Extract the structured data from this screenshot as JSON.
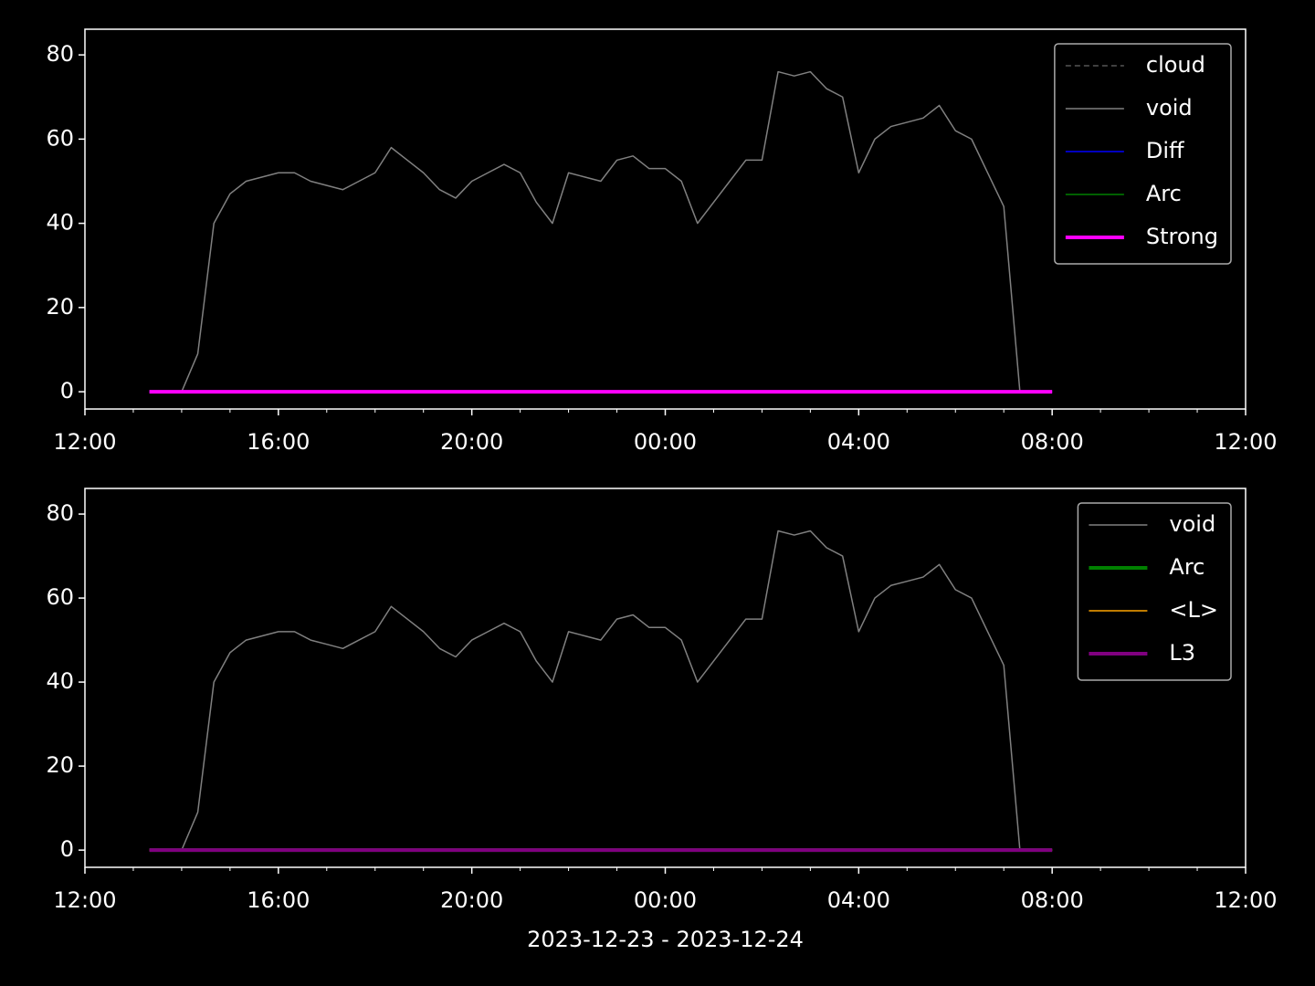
{
  "chart_data": [
    {
      "type": "line",
      "x": [
        "13:20",
        "13:40",
        "14:00",
        "14:20",
        "14:40",
        "15:00",
        "15:20",
        "15:40",
        "16:00",
        "16:20",
        "16:40",
        "17:00",
        "17:20",
        "17:40",
        "18:00",
        "18:20",
        "18:40",
        "19:00",
        "19:20",
        "19:40",
        "20:00",
        "20:20",
        "20:40",
        "21:00",
        "21:20",
        "21:40",
        "22:00",
        "22:20",
        "22:40",
        "23:00",
        "23:20",
        "23:40",
        "00:00",
        "00:20",
        "00:40",
        "01:00",
        "01:20",
        "01:40",
        "02:00",
        "02:20",
        "02:40",
        "03:00",
        "03:20",
        "03:40",
        "04:00",
        "04:20",
        "04:40",
        "05:00",
        "05:20",
        "05:40",
        "06:00",
        "06:20",
        "06:40",
        "07:00",
        "07:20",
        "07:40",
        "08:00"
      ],
      "xlim": [
        "12:00",
        "12:00"
      ],
      "xticks": [
        "12:00",
        "16:00",
        "20:00",
        "00:00",
        "04:00",
        "08:00",
        "12:00"
      ],
      "ylim": [
        -4.1,
        86.1
      ],
      "yticks": [
        0,
        20,
        40,
        60,
        80
      ],
      "legend": "upper right",
      "series": [
        {
          "name": "cloud",
          "color": "#808080",
          "linewidth": 1,
          "dashed": true,
          "values": [
            0,
            0,
            0,
            0,
            0,
            0,
            0,
            0,
            0,
            0,
            0,
            0,
            0,
            0,
            0,
            0,
            0,
            0,
            0,
            0,
            0,
            0,
            0,
            0,
            0,
            0,
            0,
            0,
            0,
            0,
            0,
            0,
            0,
            0,
            0,
            0,
            0,
            0,
            0,
            0,
            0,
            0,
            0,
            0,
            0,
            0,
            0,
            0,
            0,
            0,
            0,
            0,
            0,
            0,
            0,
            0,
            0
          ]
        },
        {
          "name": "void",
          "color": "#808080",
          "linewidth": 1.5,
          "values": [
            0,
            0,
            0,
            9,
            40,
            47,
            50,
            51,
            52,
            52,
            50,
            49,
            48,
            50,
            52,
            58,
            55,
            52,
            48,
            46,
            50,
            52,
            54,
            52,
            45,
            40,
            52,
            51,
            50,
            55,
            56,
            53,
            53,
            50,
            40,
            45,
            50,
            55,
            55,
            76,
            75,
            76,
            72,
            70,
            52,
            60,
            63,
            64,
            65,
            68,
            62,
            60,
            52,
            44,
            0,
            0,
            0
          ]
        },
        {
          "name": "Diff",
          "color": "#0000ff",
          "linewidth": 1.5,
          "values": [
            0,
            0,
            0,
            0,
            0,
            0,
            0,
            0,
            0,
            0,
            0,
            0,
            0,
            0,
            0,
            0,
            0,
            0,
            0,
            0,
            0,
            0,
            0,
            0,
            0,
            0,
            0,
            0,
            0,
            0,
            0,
            0,
            0,
            0,
            0,
            0,
            0,
            0,
            0,
            0,
            0,
            0,
            0,
            0,
            0,
            0,
            0,
            0,
            0,
            0,
            0,
            0,
            0,
            0,
            0,
            0,
            0
          ]
        },
        {
          "name": "Arc",
          "color": "#008000",
          "linewidth": 1.5,
          "values": [
            0,
            0,
            0,
            0,
            0,
            0,
            0,
            0,
            0,
            0,
            0,
            0,
            0,
            0,
            0,
            0,
            0,
            0,
            0,
            0,
            0,
            0,
            0,
            0,
            0,
            0,
            0,
            0,
            0,
            0,
            0,
            0,
            0,
            0,
            0,
            0,
            0,
            0,
            0,
            0,
            0,
            0,
            0,
            0,
            0,
            0,
            0,
            0,
            0,
            0,
            0,
            0,
            0,
            0,
            0,
            0,
            0
          ]
        },
        {
          "name": "Strong",
          "color": "#ff00ff",
          "linewidth": 4,
          "values": [
            0,
            0,
            0,
            0,
            0,
            0,
            0,
            0,
            0,
            0,
            0,
            0,
            0,
            0,
            0,
            0,
            0,
            0,
            0,
            0,
            0,
            0,
            0,
            0,
            0,
            0,
            0,
            0,
            0,
            0,
            0,
            0,
            0,
            0,
            0,
            0,
            0,
            0,
            0,
            0,
            0,
            0,
            0,
            0,
            0,
            0,
            0,
            0,
            0,
            0,
            0,
            0,
            0,
            0,
            0,
            0,
            0
          ]
        }
      ]
    },
    {
      "type": "line",
      "x": [
        "13:20",
        "13:40",
        "14:00",
        "14:20",
        "14:40",
        "15:00",
        "15:20",
        "15:40",
        "16:00",
        "16:20",
        "16:40",
        "17:00",
        "17:20",
        "17:40",
        "18:00",
        "18:20",
        "18:40",
        "19:00",
        "19:20",
        "19:40",
        "20:00",
        "20:20",
        "20:40",
        "21:00",
        "21:20",
        "21:40",
        "22:00",
        "22:20",
        "22:40",
        "23:00",
        "23:20",
        "23:40",
        "00:00",
        "00:20",
        "00:40",
        "01:00",
        "01:20",
        "01:40",
        "02:00",
        "02:20",
        "02:40",
        "03:00",
        "03:20",
        "03:40",
        "04:00",
        "04:20",
        "04:40",
        "05:00",
        "05:20",
        "05:40",
        "06:00",
        "06:20",
        "06:40",
        "07:00",
        "07:20",
        "07:40",
        "08:00"
      ],
      "xlim": [
        "12:00",
        "12:00"
      ],
      "xticks": [
        "12:00",
        "16:00",
        "20:00",
        "00:00",
        "04:00",
        "08:00",
        "12:00"
      ],
      "xlabel": "2023-12-23 - 2023-12-24",
      "ylim": [
        -4.1,
        86.1
      ],
      "yticks": [
        0,
        20,
        40,
        60,
        80
      ],
      "legend": "upper right",
      "series": [
        {
          "name": "void",
          "color": "#808080",
          "linewidth": 1.5,
          "values": [
            0,
            0,
            0,
            9,
            40,
            47,
            50,
            51,
            52,
            52,
            50,
            49,
            48,
            50,
            52,
            58,
            55,
            52,
            48,
            46,
            50,
            52,
            54,
            52,
            45,
            40,
            52,
            51,
            50,
            55,
            56,
            53,
            53,
            50,
            40,
            45,
            50,
            55,
            55,
            76,
            75,
            76,
            72,
            70,
            52,
            60,
            63,
            64,
            65,
            68,
            62,
            60,
            52,
            44,
            0,
            0,
            0
          ]
        },
        {
          "name": "Arc",
          "color": "#008000",
          "linewidth": 4,
          "values": [
            0,
            0,
            0,
            0,
            0,
            0,
            0,
            0,
            0,
            0,
            0,
            0,
            0,
            0,
            0,
            0,
            0,
            0,
            0,
            0,
            0,
            0,
            0,
            0,
            0,
            0,
            0,
            0,
            0,
            0,
            0,
            0,
            0,
            0,
            0,
            0,
            0,
            0,
            0,
            0,
            0,
            0,
            0,
            0,
            0,
            0,
            0,
            0,
            0,
            0,
            0,
            0,
            0,
            0,
            0,
            0,
            0
          ]
        },
        {
          "name": "<L>",
          "color": "#ffa500",
          "linewidth": 1.5,
          "values": [
            0,
            0,
            0,
            0,
            0,
            0,
            0,
            0,
            0,
            0,
            0,
            0,
            0,
            0,
            0,
            0,
            0,
            0,
            0,
            0,
            0,
            0,
            0,
            0,
            0,
            0,
            0,
            0,
            0,
            0,
            0,
            0,
            0,
            0,
            0,
            0,
            0,
            0,
            0,
            0,
            0,
            0,
            0,
            0,
            0,
            0,
            0,
            0,
            0,
            0,
            0,
            0,
            0,
            0,
            0,
            0,
            0
          ]
        },
        {
          "name": "L3",
          "color": "#800080",
          "linewidth": 4,
          "values": [
            0,
            0,
            0,
            0,
            0,
            0,
            0,
            0,
            0,
            0,
            0,
            0,
            0,
            0,
            0,
            0,
            0,
            0,
            0,
            0,
            0,
            0,
            0,
            0,
            0,
            0,
            0,
            0,
            0,
            0,
            0,
            0,
            0,
            0,
            0,
            0,
            0,
            0,
            0,
            0,
            0,
            0,
            0,
            0,
            0,
            0,
            0,
            0,
            0,
            0,
            0,
            0,
            0,
            0,
            0,
            0,
            0
          ]
        }
      ]
    }
  ]
}
